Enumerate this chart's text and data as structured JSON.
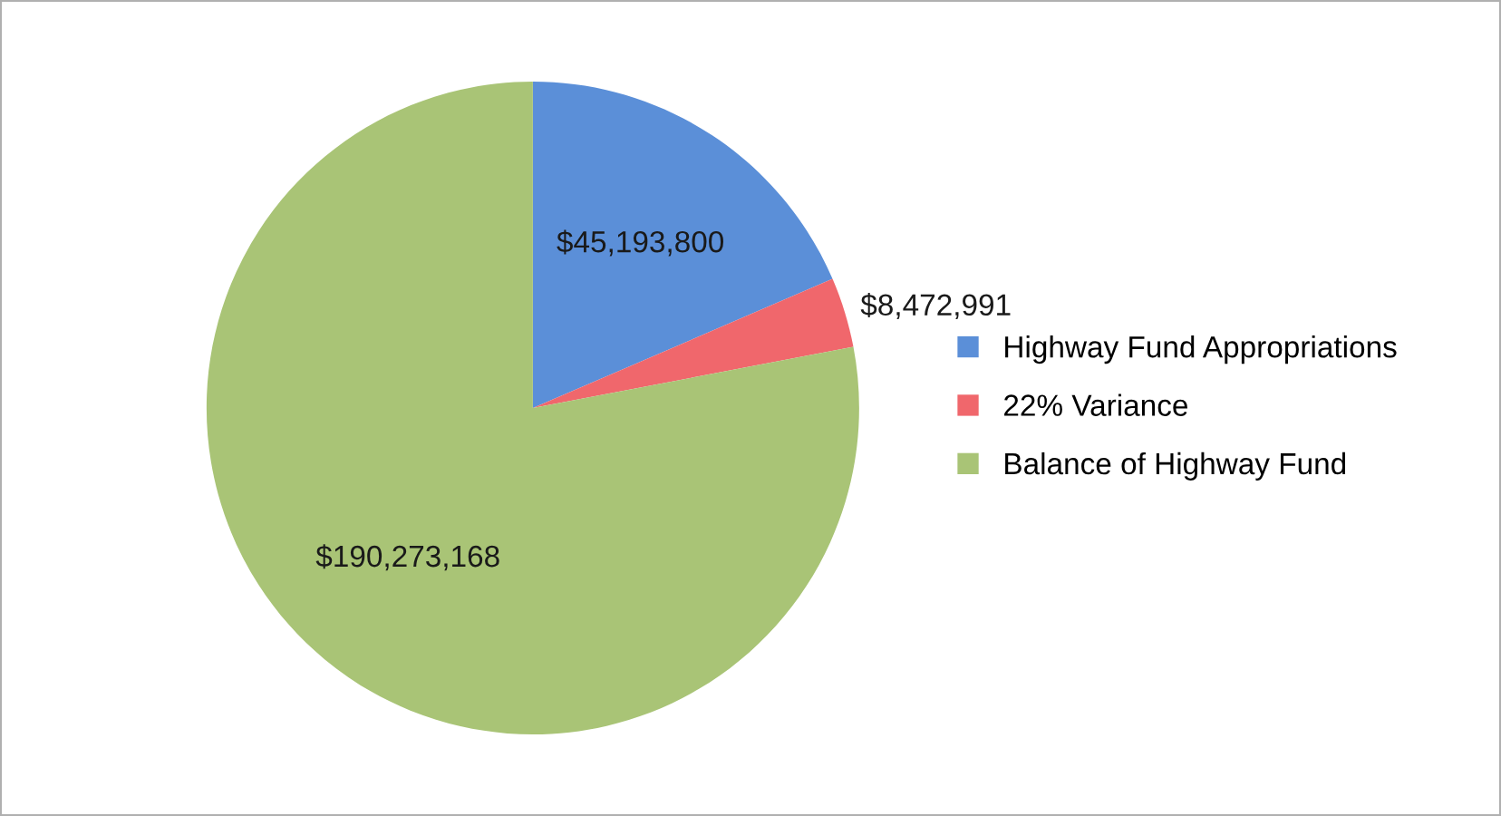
{
  "chart_data": {
    "type": "pie",
    "categories": [
      "Highway Fund Appropriations",
      "22% Variance",
      "Balance of Highway Fund"
    ],
    "values": [
      45193800,
      8472991,
      190273168
    ],
    "colors": [
      "#5b8fd8",
      "#f0676c",
      "#a9c476"
    ],
    "value_labels": [
      "$45,193,800",
      "$8,472,991",
      "$190,273,168"
    ],
    "legend": "right"
  }
}
